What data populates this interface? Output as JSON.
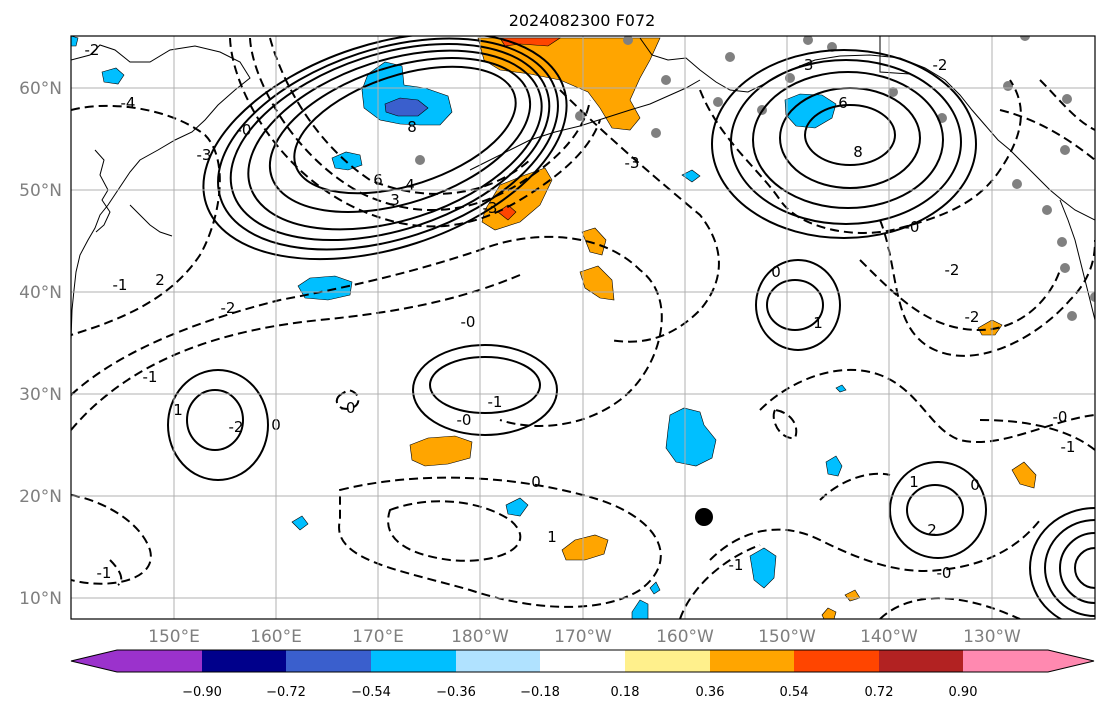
{
  "figure": {
    "title": "2024082300 F072"
  },
  "map": {
    "lat_labels": [
      "60°N",
      "50°N",
      "40°N",
      "30°N",
      "20°N",
      "10°N"
    ],
    "lon_labels": [
      "150°E",
      "160°E",
      "170°E",
      "180°W",
      "170°W",
      "160°W",
      "150°W",
      "140°W",
      "130°W"
    ],
    "contour_labels": [
      "-2",
      "-4",
      "-0",
      "8",
      "6",
      "4",
      "3",
      "-3",
      "-1",
      "-2",
      "2",
      "-0",
      "0",
      "1",
      "-0",
      "-1",
      "-0",
      "-2",
      "-1",
      "0",
      "1",
      "-3",
      "-3",
      "6",
      "8",
      "-2",
      "-0",
      "-3",
      "0",
      "1",
      "-2",
      "-0",
      "-1",
      "0",
      "1",
      "-1",
      "2",
      "-0",
      "-2",
      "-1"
    ],
    "marker": {
      "lon": -158,
      "lat": 18
    }
  },
  "colorbar": {
    "tick_labels": [
      "−0.90",
      "−0.72",
      "−0.54",
      "−0.36",
      "−0.18",
      "0.18",
      "0.36",
      "0.54",
      "0.72",
      "0.90"
    ],
    "colors": [
      "#9b32cc",
      "#00008b",
      "#3a5fcd",
      "#00bfff",
      "#b0e2ff",
      "#ffffff",
      "#fff08c",
      "#ffa500",
      "#ff4500",
      "#b22222",
      "#ff89b0"
    ]
  },
  "colors": {
    "land": "#808080",
    "grid": "#b0b0b0",
    "positive": "#ffa500",
    "positive_strong": "#ff4500",
    "negative": "#00bfff",
    "negative_strong": "#3a5fcd",
    "contour": "#000000"
  }
}
